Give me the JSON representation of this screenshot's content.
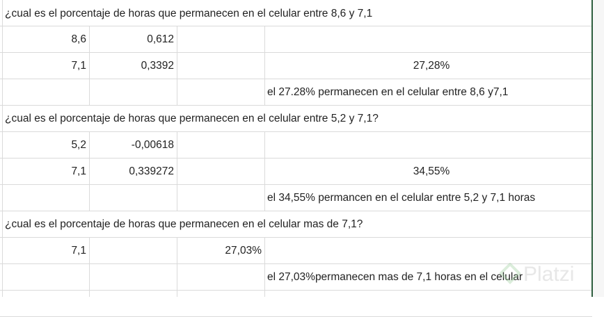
{
  "rows": [
    {
      "question": "¿cual es el porcentaje de horas que permanecen en el celular entre 8,6 y 7,1"
    },
    {
      "a": "8,6",
      "b": "0,612"
    },
    {
      "a": "7,1",
      "b": "0,3392",
      "d": "27,28%"
    },
    {
      "d": "el 27.28%  permanecen en el celular entre 8,6 y7,1"
    },
    {
      "question": "¿cual es el porcentaje de horas que permanecen en el celular entre 5,2 y 7,1?"
    },
    {
      "a": "5,2",
      "b": "-0,00618"
    },
    {
      "a": "7,1",
      "b": "0,339272",
      "d": "34,55%"
    },
    {
      "d": "el 34,55% permancen en el celular entre 5,2 y 7,1 horas"
    },
    {
      "question": "¿cual es el porcentaje de horas que permanecen en el celular mas de 7,1?"
    },
    {
      "a": "7,1",
      "c": "27,03%"
    },
    {
      "d": "el 27,03%permanecen mas de 7,1 horas en el celular"
    }
  ],
  "watermark": "Platzi",
  "colors": {
    "grid": "#dadada",
    "sheet_border": "#2e5e3e"
  }
}
